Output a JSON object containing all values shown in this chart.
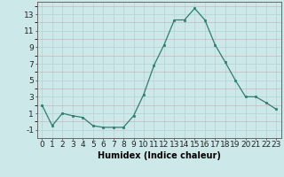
{
  "x": [
    0,
    1,
    2,
    3,
    4,
    5,
    6,
    7,
    8,
    9,
    10,
    11,
    12,
    13,
    14,
    15,
    16,
    17,
    18,
    19,
    20,
    21,
    22,
    23
  ],
  "y": [
    2,
    -0.5,
    1,
    0.7,
    0.5,
    -0.5,
    -0.7,
    -0.7,
    -0.7,
    0.7,
    3.3,
    6.8,
    9.3,
    12.3,
    12.3,
    13.7,
    12.3,
    9.3,
    7.2,
    5.0,
    3.0,
    3.0,
    2.3,
    1.5
  ],
  "xlabel": "Humidex (Indice chaleur)",
  "xlim": [
    -0.5,
    23.5
  ],
  "ylim": [
    -2,
    14.5
  ],
  "yticks": [
    -1,
    1,
    3,
    5,
    7,
    9,
    11,
    13
  ],
  "xticks": [
    0,
    1,
    2,
    3,
    4,
    5,
    6,
    7,
    8,
    9,
    10,
    11,
    12,
    13,
    14,
    15,
    16,
    17,
    18,
    19,
    20,
    21,
    22,
    23
  ],
  "line_color": "#2e7d6e",
  "marker_color": "#2e7d6e",
  "bg_color": "#cce8e8",
  "grid_major_color": "#b8d4d4",
  "grid_minor_color": "#d4e8e8",
  "xlabel_fontsize": 7,
  "tick_fontsize": 6.5
}
